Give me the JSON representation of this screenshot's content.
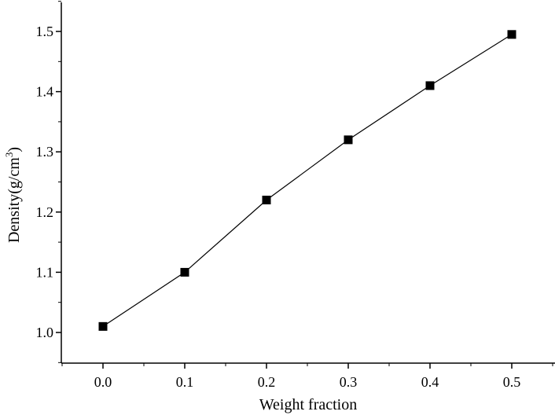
{
  "chart_data": {
    "type": "line",
    "title": "",
    "xlabel": "Weight fraction",
    "ylabel_main": "Density(g/cm",
    "ylabel_sup": "3",
    "ylabel_close": ")",
    "xlim": [
      -0.1,
      0.55
    ],
    "ylim": [
      0.95,
      1.55
    ],
    "xticks": [
      0.0,
      0.1,
      0.2,
      0.3,
      0.4,
      0.5
    ],
    "xtick_labels": [
      "0.0",
      "0.1",
      "0.2",
      "0.3",
      "0.4",
      "0.5"
    ],
    "yticks": [
      1.0,
      1.1,
      1.2,
      1.3,
      1.4,
      1.5
    ],
    "ytick_labels": [
      "1.0",
      "1.1",
      "1.2",
      "1.3",
      "1.4",
      "1.5"
    ],
    "grid": false,
    "marker": "square",
    "series": [
      {
        "x": [
          0.0,
          0.1,
          0.2,
          0.3,
          0.4,
          0.5
        ],
        "values": [
          1.01,
          1.1,
          1.22,
          1.32,
          1.41,
          1.495
        ],
        "color": "#000000"
      }
    ]
  }
}
